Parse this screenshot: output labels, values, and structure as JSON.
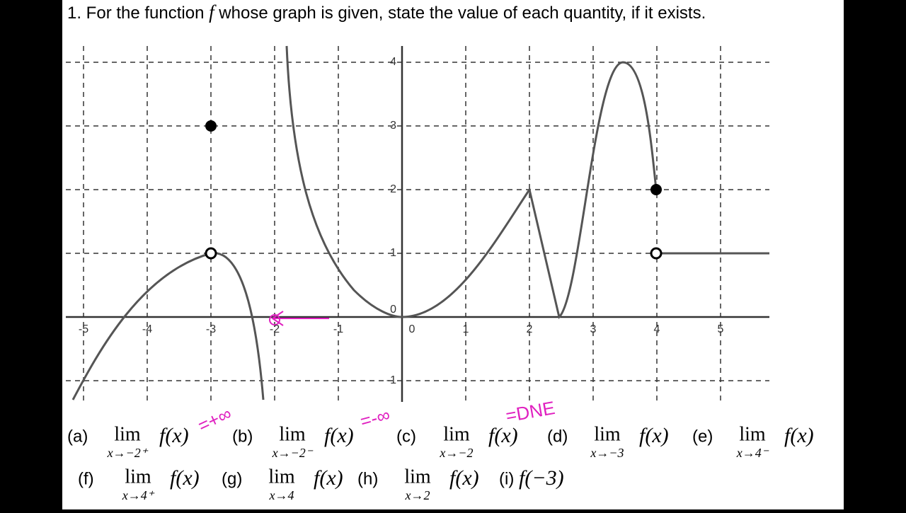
{
  "header": {
    "title": [
      "1. For the function ",
      "f",
      " whose graph is given, state the value of each quantity, if it exists."
    ]
  },
  "graph": {
    "xticks": [
      -5,
      -4,
      -3,
      -2,
      -1,
      0,
      1,
      2,
      3,
      4,
      5
    ],
    "yticks": [
      -1,
      0,
      1,
      2,
      3,
      4
    ]
  },
  "annotations": [
    "=+∞",
    "=-∞",
    "=DNE"
  ],
  "questions": [
    {
      "label": "(a)",
      "limit": "lim",
      "sub": "x→−2⁺",
      "expr": "f(x)"
    },
    {
      "label": "(b)",
      "limit": "lim",
      "sub": "x→−2⁻",
      "expr": "f(x)"
    },
    {
      "label": "(c)",
      "limit": "lim",
      "sub": "x→−2",
      "expr": "f(x)"
    },
    {
      "label": "(d)",
      "limit": "lim",
      "sub": "x→−3",
      "expr": "f(x)"
    },
    {
      "label": "(e)",
      "limit": "lim",
      "sub": "x→4⁻",
      "expr": "f(x)"
    },
    {
      "label": "(f)",
      "limit": "lim",
      "sub": "x→4⁺",
      "expr": "f(x)"
    },
    {
      "label": "(g)",
      "limit": "lim",
      "sub": "x→4",
      "expr": "f(x)"
    },
    {
      "label": "(h)",
      "limit": "lim",
      "sub": "x→2",
      "expr": "f(x)"
    },
    {
      "label": "(i)",
      "expr": "f(−3)"
    }
  ]
}
